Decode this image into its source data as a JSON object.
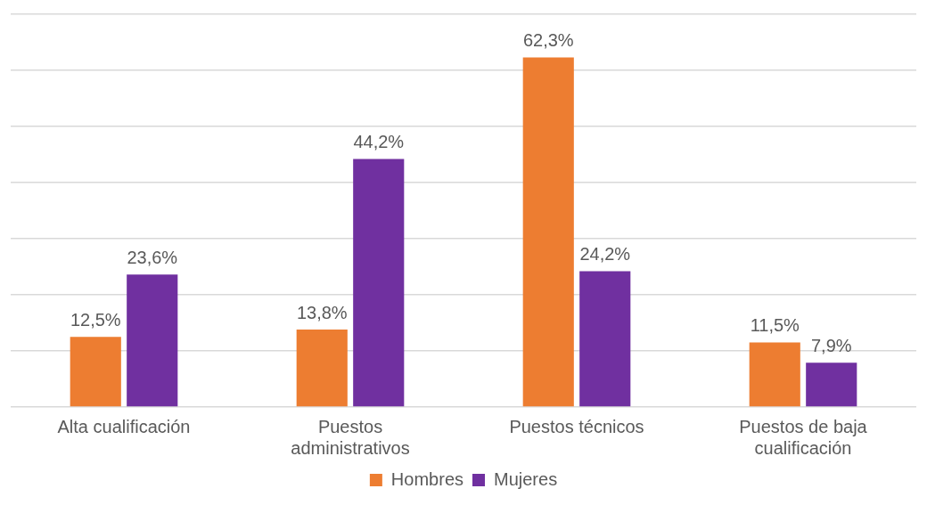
{
  "chart_data": {
    "type": "bar",
    "categories": [
      "Alta cualificación",
      "Puestos administrativos",
      "Puestos técnicos",
      "Puestos de baja cualificación"
    ],
    "series": [
      {
        "name": "Hombres",
        "color": "#ed7d31",
        "values": [
          12.5,
          13.8,
          62.3,
          11.5
        ],
        "value_labels": [
          "12,5%",
          "13,8%",
          "62,3%",
          "11,5%"
        ]
      },
      {
        "name": "Mujeres",
        "color": "#7030a0",
        "values": [
          23.6,
          44.2,
          24.2,
          7.9
        ],
        "value_labels": [
          "23,6%",
          "44,2%",
          "24,2%",
          "7,9%"
        ]
      }
    ],
    "ylim": [
      0,
      70
    ],
    "yticks": [
      {
        "value": 0,
        "label": null
      },
      {
        "value": 10,
        "label": null
      },
      {
        "value": 20,
        "label": null
      },
      {
        "value": 30,
        "label": null
      },
      {
        "value": 40,
        "label": null
      },
      {
        "value": 50,
        "label": null
      },
      {
        "value": 60,
        "label": null
      },
      {
        "value": 70,
        "label": null
      }
    ],
    "tick_labels": "x",
    "grid": "y",
    "legend": "bottom"
  }
}
